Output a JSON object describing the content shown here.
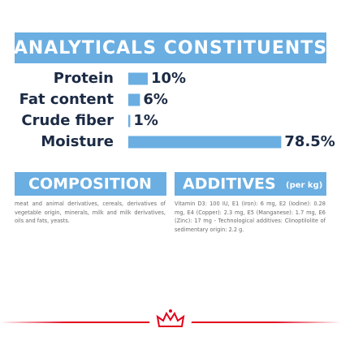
{
  "chart_data": {
    "type": "bar",
    "title": "ANALYTICALS CONSTITUENTS",
    "categories": [
      "Protein",
      "Fat content",
      "Crude fiber",
      "Moisture"
    ],
    "values": [
      10,
      6,
      1,
      78.5
    ],
    "value_labels": [
      "10%",
      "6%",
      "1%",
      "78.5%"
    ],
    "color": "#6aaee2"
  },
  "composition": {
    "title": "COMPOSITION",
    "text": "meat and animal derivatives, cereals, derivatives of vegetable origin, minerals, milk and milk derivatives, oils and fats, yeasts."
  },
  "additives": {
    "title": "ADDITIVES",
    "unit": "(per kg)",
    "text": "Vitamin D3: 100 IU, E1 (Iron): 6 mg, E2 (Iodine): 0.28 mg, E4 (Copper): 2.3 mg, E5 (Manganese): 1.7 mg, E6 (Zinc): 17 mg - Technological additives: Clinoptilolite of sedimentary origin: 2.2 g."
  }
}
